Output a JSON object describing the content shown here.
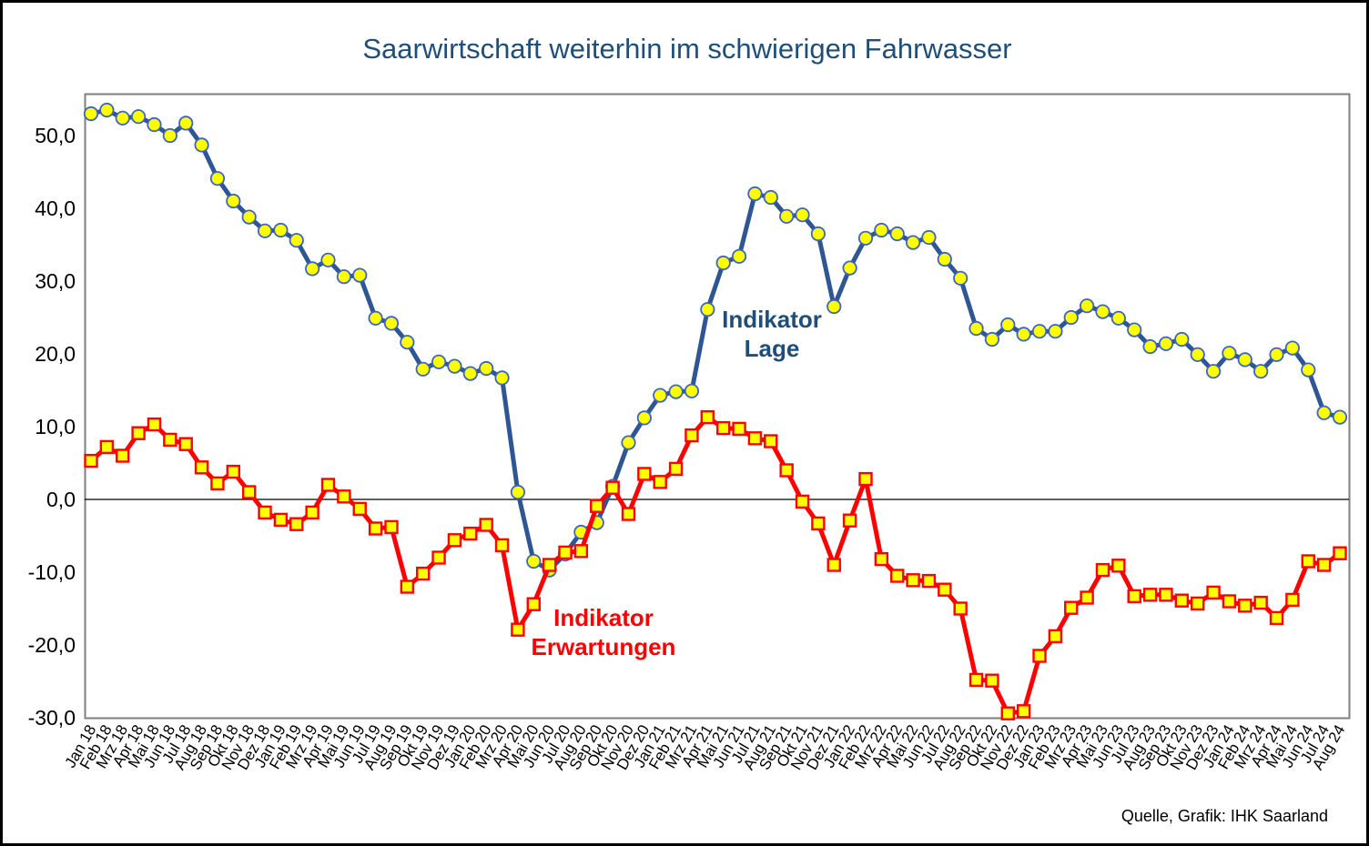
{
  "page": {
    "background": "#ffffff",
    "outer_border_color": "#000000"
  },
  "header": {
    "title": "Saarwirtschaft weiterhin im schwierigen Fahrwasser",
    "title_color": "#1f4e79"
  },
  "footer": {
    "source": "Quelle, Grafik: IHK Saarland"
  },
  "on_chart_labels": {
    "lage": {
      "line1": "Indikator",
      "line2": "Lage",
      "color": "#1f4e79"
    },
    "erwartungen": {
      "line1": "Indikator",
      "line2": "Erwartungen",
      "color": "#ff0000"
    }
  },
  "chart_data": {
    "type": "line",
    "title": "Saarwirtschaft weiterhin im schwierigen Fahrwasser",
    "xlabel": "",
    "ylabel": "",
    "ylim": [
      -30,
      55.75
    ],
    "grid": false,
    "zero_line": true,
    "legend_position": "annotations-on-chart",
    "plot_frame_color": "#7f7f7f",
    "y_ticks": [
      {
        "value": 50,
        "label": "50,0"
      },
      {
        "value": 40,
        "label": "40,0"
      },
      {
        "value": 30,
        "label": "30,0"
      },
      {
        "value": 20,
        "label": "20,0"
      },
      {
        "value": 10,
        "label": "10,0"
      },
      {
        "value": 0,
        "label": "0,0"
      },
      {
        "value": -10,
        "label": "-10,0"
      },
      {
        "value": -20,
        "label": "-20,0"
      },
      {
        "value": -30,
        "label": "-30,0"
      }
    ],
    "x_labels": [
      "Jan 18",
      "Feb 18",
      "Mrz 18",
      "Apr 18",
      "Mai 18",
      "Jun 18",
      "Jul 18",
      "Aug 18",
      "Sep 18",
      "Okt 18",
      "Nov 18",
      "Dez 18",
      "Jan 19",
      "Feb 19",
      "Mrz 19",
      "Apr 19",
      "Mai 19",
      "Jun 19",
      "Jul 19",
      "Aug 19",
      "Sep 19",
      "Okt 19",
      "Nov 19",
      "Dez 19",
      "Jan 20",
      "Feb 20",
      "Mrz 20",
      "Apr 20",
      "Mai 20",
      "Jun 20",
      "Jul 20",
      "Aug 20",
      "Sep 20",
      "Okt 20",
      "Nov 20",
      "Dez 20",
      "Jan 21",
      "Feb 21",
      "Mrz 21",
      "Apr 21",
      "Mai 21",
      "Jun 21",
      "Jul 21",
      "Aug 21",
      "Sep 21",
      "Okt 21",
      "Nov 21",
      "Dez 21",
      "Jan 22",
      "Feb 22",
      "Mrz 22",
      "Apr 22",
      "Mai 22",
      "Jun 22",
      "Jul 22",
      "Aug 22",
      "Sep 22",
      "Okt 22",
      "Nov 22",
      "Dez 22",
      "Jan 23",
      "Feb 23",
      "Mrz 23",
      "Apr 23",
      "Mai 23",
      "Jun 23",
      "Jul 23",
      "Aug 23",
      "Sep 23",
      "Okt 23",
      "Nov 23",
      "Dez 23",
      "Jan 24",
      "Feb 24",
      "Mrz 24",
      "Apr 24",
      "Mai 24",
      "Jun 24",
      "Jul 24",
      "Aug 24"
    ],
    "series": [
      {
        "name": "Indikator Lage",
        "color": "#2e5693",
        "marker": "circle",
        "marker_fill": "#ffff00",
        "marker_stroke": "#3b63c6",
        "values": [
          53.0,
          53.5,
          52.4,
          52.6,
          51.5,
          50.0,
          51.7,
          48.7,
          44.1,
          41.0,
          38.8,
          36.9,
          37.0,
          35.6,
          31.7,
          32.9,
          30.6,
          30.8,
          24.9,
          24.2,
          21.6,
          17.9,
          18.9,
          18.3,
          17.3,
          18.0,
          16.7,
          1.0,
          -8.5,
          -9.7,
          -7.5,
          -4.5,
          -3.2,
          1.8,
          7.8,
          11.2,
          14.3,
          14.8,
          14.9,
          26.1,
          32.5,
          33.4,
          42.0,
          41.5,
          38.9,
          39.1,
          36.5,
          26.5,
          31.8,
          35.9,
          37.0,
          36.5,
          35.3,
          36.0,
          33.0,
          30.4,
          23.5,
          22.0,
          24.0,
          22.7,
          23.1,
          23.1,
          25.0,
          26.6,
          25.8,
          24.9,
          23.3,
          21.0,
          21.4,
          22.0,
          19.9,
          17.6,
          20.1,
          19.2,
          17.6,
          19.9,
          20.8,
          17.8,
          11.9,
          11.3
        ]
      },
      {
        "name": "Indikator Erwartungen",
        "color": "#ff0000",
        "marker": "square",
        "marker_fill": "#ffff00",
        "marker_stroke": "#ff0000",
        "values": [
          5.3,
          7.2,
          6.0,
          9.1,
          10.3,
          8.2,
          7.6,
          4.4,
          2.2,
          3.8,
          1.0,
          -1.8,
          -2.8,
          -3.4,
          -1.8,
          2.0,
          0.4,
          -1.3,
          -4.0,
          -3.8,
          -12.0,
          -10.2,
          -8.0,
          -5.6,
          -4.7,
          -3.5,
          -6.3,
          -17.9,
          -14.4,
          -9.0,
          -7.3,
          -7.1,
          -0.9,
          1.6,
          -2.0,
          3.5,
          2.4,
          4.2,
          8.8,
          11.3,
          9.8,
          9.7,
          8.4,
          8.0,
          4.0,
          -0.3,
          -3.3,
          -9.0,
          -2.9,
          2.8,
          -8.2,
          -10.5,
          -11.1,
          -11.2,
          -12.4,
          -15.0,
          -24.8,
          -24.9,
          -29.4,
          -29.1,
          -21.5,
          -18.8,
          -14.9,
          -13.5,
          -9.7,
          -9.1,
          -13.3,
          -13.1,
          -13.1,
          -13.9,
          -14.3,
          -12.8,
          -14.0,
          -14.6,
          -14.2,
          -16.3,
          -13.8,
          -8.5,
          -9.0,
          -7.4
        ]
      }
    ]
  }
}
